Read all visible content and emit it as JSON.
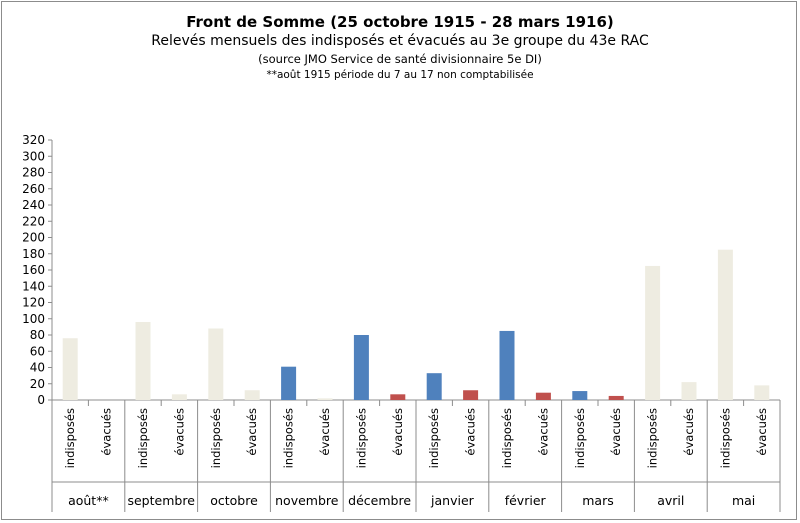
{
  "chart_data": {
    "type": "bar",
    "title": "Front de Somme (25 octobre 1915  - 28  mars 1916)",
    "subtitle": "Relevés mensuels des  indisposés et évacués au 3e groupe du 43e RAC",
    "source_note": "(source JMO  Service de santé  divisionnaire 5e DI)",
    "footnote": "**août 1915 période du 7 au 17 non comptabilisée",
    "ylim": [
      0,
      320
    ],
    "yticks": [
      "0",
      "20",
      "40",
      "60",
      "80",
      "100",
      "120",
      "140",
      "160",
      "180",
      "200",
      "220",
      "240",
      "260",
      "280",
      "300",
      "320"
    ],
    "grid": false,
    "sub_labels": [
      "indisposés",
      "évacués"
    ],
    "months": [
      "août**",
      "septembre",
      "octobre",
      "novembre",
      "décembre",
      "janvier",
      "février",
      "mars",
      "avril",
      "mai"
    ],
    "series": [
      {
        "values": [
          76,
          96,
          88,
          41,
          80,
          33,
          85,
          11,
          165,
          185
        ],
        "colors": [
          "#eeece1",
          "#eeece1",
          "#eeece1",
          "#4f81bd",
          "#4f81bd",
          "#4f81bd",
          "#4f81bd",
          "#4f81bd",
          "#eeece1",
          "#eeece1"
        ]
      },
      {
        "values": [
          0,
          7,
          12,
          2,
          7,
          12,
          9,
          5,
          22,
          18
        ],
        "colors": [
          "#eeece1",
          "#eeece1",
          "#eeece1",
          "#eeece1",
          "#c0504d",
          "#c0504d",
          "#c0504d",
          "#c0504d",
          "#eeece1",
          "#eeece1"
        ]
      }
    ],
    "colors": {
      "neutral": "#eeece1",
      "indisposes_front": "#4f81bd",
      "evacues_front": "#c0504d"
    }
  }
}
